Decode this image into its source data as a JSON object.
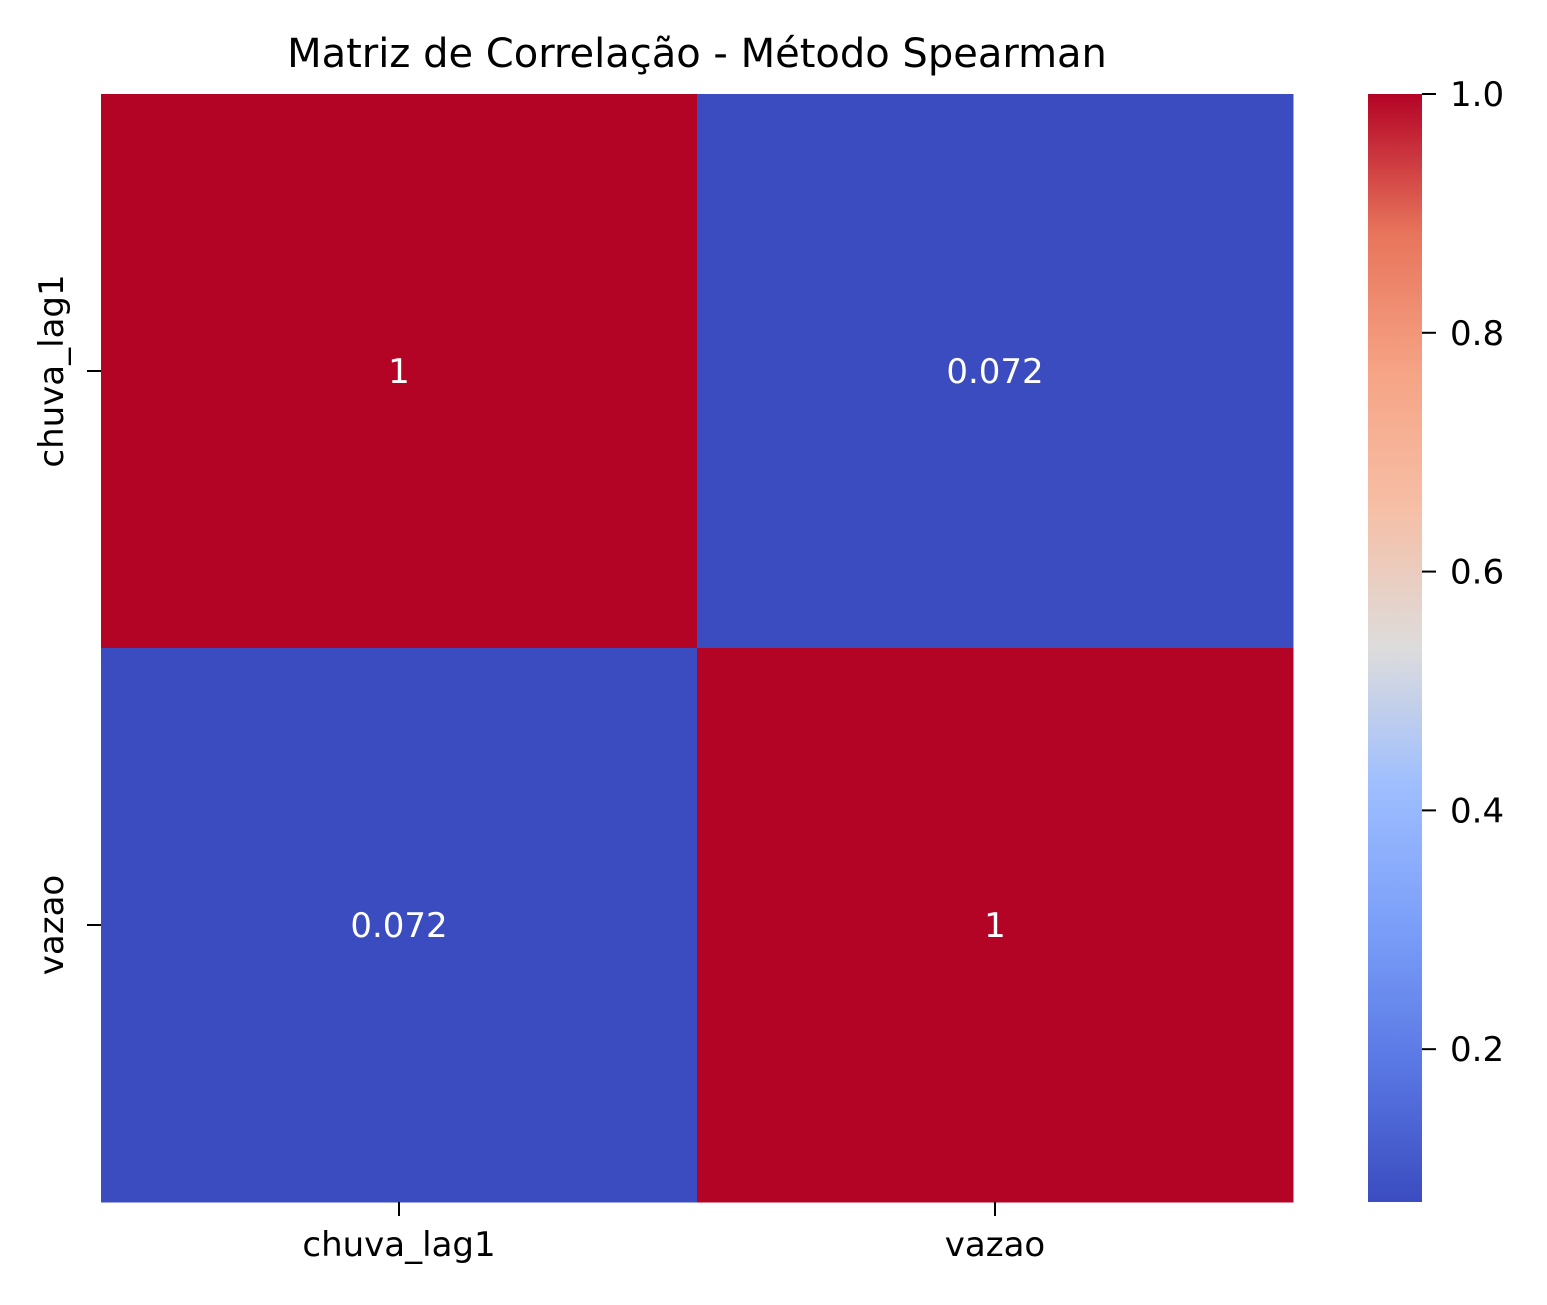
{
  "chart_data": {
    "type": "heatmap",
    "title": "Matriz de Correlação - Método Spearman",
    "x_labels": [
      "chuva_lag1",
      "vazao"
    ],
    "y_labels": [
      "chuva_lag1",
      "vazao"
    ],
    "values": [
      [
        1,
        0.072
      ],
      [
        0.072,
        1
      ]
    ],
    "cell_text": [
      [
        "1",
        "0.072"
      ],
      [
        "0.072",
        "1"
      ]
    ],
    "colormap": "coolwarm",
    "colors": {
      "high": "#b40426",
      "low": "#3b4cc0",
      "annotation_text": "#ffffff"
    },
    "colorbar": {
      "range": [
        0.072,
        1.0
      ],
      "ticks": [
        0.2,
        0.4,
        0.6,
        0.8,
        1.0
      ],
      "tick_labels": [
        "0.2",
        "0.4",
        "0.6",
        "0.8",
        "1.0"
      ],
      "placement": "right"
    },
    "grid": false
  }
}
